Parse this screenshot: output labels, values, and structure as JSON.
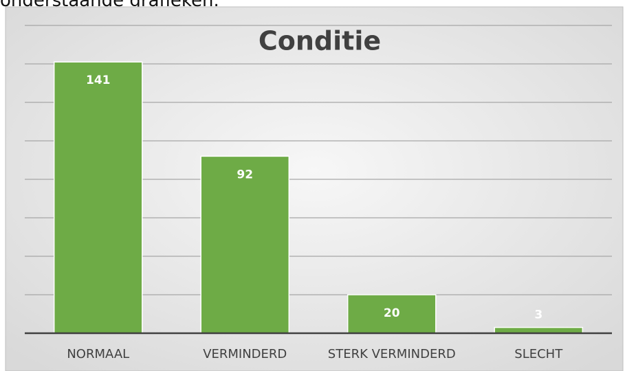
{
  "page_text": "onderstaande grafieken.",
  "chart_data": {
    "type": "bar",
    "title": "Conditie",
    "categories": [
      "NORMAAL",
      "VERMINDERD",
      "STERK VERMINDERD",
      "SLECHT"
    ],
    "values": [
      141,
      92,
      20,
      3
    ],
    "color": "#6eab46",
    "ylim": [
      0,
      160
    ],
    "yticks": [
      0,
      20,
      40,
      60,
      80,
      100,
      120,
      140,
      160
    ],
    "grid": true
  }
}
